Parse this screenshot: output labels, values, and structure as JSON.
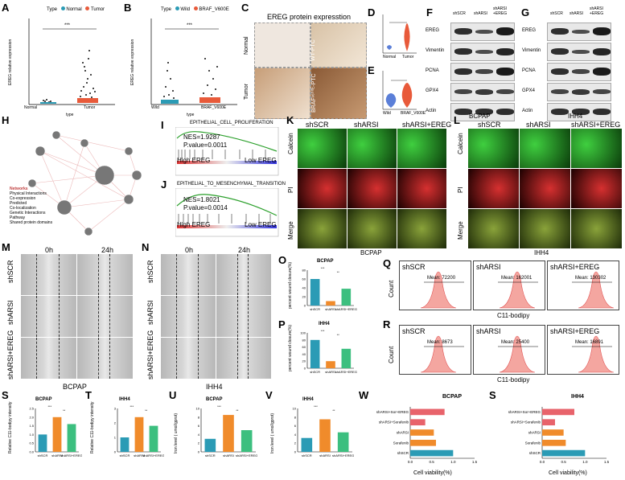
{
  "panels": {
    "A": {
      "letter": "A",
      "legend_title": "Type",
      "legend_items": [
        "Normal",
        "Tumor"
      ],
      "ylabel": "EREG relative expression",
      "xlabel": "type",
      "categories": [
        "Normal",
        "Tumor"
      ],
      "sig": "***"
    },
    "B": {
      "letter": "B",
      "legend_title": "Type",
      "legend_items": [
        "Wild",
        "BRAF_V600E"
      ],
      "ylabel": "EREG relative expression",
      "xlabel": "type",
      "categories": [
        "Wild",
        "BRAF_V600E"
      ],
      "sig": "***"
    },
    "C": {
      "letter": "C",
      "title": "EREG protein expresstion",
      "row_labels": [
        "Normal",
        "Tumor"
      ],
      "right_labels": [
        "WT-PTC",
        "BRAFᵛ⁶⁰⁰ᴱ-PTC"
      ]
    },
    "D": {
      "letter": "D",
      "categories": [
        "Normal",
        "Tumor"
      ],
      "sig": "***"
    },
    "E": {
      "letter": "E",
      "categories": [
        "Wild",
        "BRAF_V600E"
      ],
      "sig": "***"
    },
    "F": {
      "letter": "F",
      "columns": [
        "shSCR",
        "shARSI",
        "shARSI +EREG"
      ],
      "rows": [
        "EREG",
        "Vimentin",
        "PCNA",
        "GPX4",
        "Actin"
      ],
      "cell_line": "BCPAP"
    },
    "G": {
      "letter": "G",
      "columns": [
        "shSCR",
        "shARSI",
        "shARSI +EREG"
      ],
      "rows": [
        "EREG",
        "Vimentin",
        "PCNA",
        "GPX4",
        "Actin"
      ],
      "cell_line": "IHH4"
    },
    "H": {
      "letter": "H",
      "legend_title": "Networks",
      "legend_items": [
        "Physical Interactions",
        "Co-expression",
        "Predicted",
        "Co-localization",
        "Genetic Interactions",
        "Pathway",
        "Shared protein domains"
      ]
    },
    "I": {
      "letter": "I",
      "title": "EPITHELIAL_CELL_PROLIFERATION",
      "nes": "NES=1.9287",
      "p": "P.value=0.0011",
      "high": "High EREG",
      "low": "Low EREG"
    },
    "J": {
      "letter": "J",
      "title": "EPITHELIAL_TO_MESENCHYMAL_TRANSITION",
      "nes": "NES=1.8021",
      "p": "P.value=0.0014",
      "high": "High EREG",
      "low": "Low EREG"
    },
    "K": {
      "letter": "K",
      "columns": [
        "shSCR",
        "shARSI",
        "shARSI+EREG"
      ],
      "rows": [
        "Calcein",
        "PI",
        "Merge"
      ],
      "cell_line": "BCPAP"
    },
    "L": {
      "letter": "L",
      "columns": [
        "shSCR",
        "shARSI",
        "shARSI+EREG"
      ],
      "rows": [
        "Calcein",
        "PI",
        "Merge"
      ],
      "cell_line": "IHH4"
    },
    "M": {
      "letter": "M",
      "times": [
        "0h",
        "24h"
      ],
      "rows": [
        "shSCR",
        "shARSI",
        "shARSI+EREG"
      ],
      "cell_line": "BCPAP"
    },
    "N": {
      "letter": "N",
      "times": [
        "0h",
        "24h"
      ],
      "rows": [
        "shSCR",
        "shARSI",
        "shARSI+EREG"
      ],
      "cell_line": "IHH4"
    },
    "O": {
      "letter": "O",
      "title": "BCPAP",
      "ylabel": "percent wound closure(%)"
    },
    "P": {
      "letter": "P",
      "title": "IHH4",
      "ylabel": "percent wound closure(%)"
    },
    "Q": {
      "letter": "Q",
      "boxes": [
        {
          "label": "shSCR",
          "mean": "Mean: 72200"
        },
        {
          "label": "shARSI",
          "mean": "Mean: 162001"
        },
        {
          "label": "shARSI+EREG",
          "mean": "Mean: 130302"
        }
      ],
      "ylabel": "Count",
      "xlabel": "C11-bodipy"
    },
    "R": {
      "letter": "R",
      "boxes": [
        {
          "label": "shSCR",
          "mean": "Mean: 8673"
        },
        {
          "label": "shARSI",
          "mean": "Mean: 25400"
        },
        {
          "label": "shARSI+EREG",
          "mean": "Mean: 16891"
        }
      ],
      "ylabel": "Count",
      "xlabel": "C11-bodipy"
    },
    "S": {
      "letter": "S",
      "title": "BCPAP",
      "ylabel": "Relative C11-bodipy intensity"
    },
    "T": {
      "letter": "T",
      "title": "IHH4",
      "ylabel": "Relative C11-bodipy intensity"
    },
    "U": {
      "letter": "U",
      "title": "BCPAP",
      "ylabel": "Iron level ( umol/gprot)"
    },
    "V": {
      "letter": "V",
      "title": "IHH4",
      "ylabel": "Iron level ( umol/gprot)"
    },
    "W": {
      "letter": "W",
      "title": "BCPAP",
      "xlabel": "Cell viability(%)"
    },
    "S2": {
      "letter": "S",
      "title": "IHH4",
      "xlabel": "Cell viability(%)"
    }
  },
  "chart_data": [
    {
      "id": "O",
      "type": "bar",
      "categories": [
        "shSCR",
        "shARSI",
        "shARSI+EREG"
      ],
      "values": [
        60,
        10,
        38
      ],
      "ylim": [
        0,
        80
      ],
      "yticks": [
        "0",
        "20",
        "40",
        "60",
        "80"
      ],
      "colors": [
        "#2b9bb5",
        "#f08b2b",
        "#3cbf7f"
      ],
      "sig": [
        "***",
        "**"
      ]
    },
    {
      "id": "P",
      "type": "bar",
      "categories": [
        "shSCR",
        "shARSI",
        "shARSI+EREG"
      ],
      "values": [
        80,
        20,
        55
      ],
      "ylim": [
        0,
        100
      ],
      "yticks": [
        "0",
        "20",
        "40",
        "60",
        "80",
        "100"
      ],
      "colors": [
        "#2b9bb5",
        "#f08b2b",
        "#3cbf7f"
      ],
      "sig": [
        "***",
        "**"
      ]
    },
    {
      "id": "S",
      "type": "bar",
      "categories": [
        "shSCR",
        "shARSI",
        "shARSI+EREG"
      ],
      "values": [
        1.0,
        2.0,
        1.6
      ],
      "ylim": [
        0,
        2.5
      ],
      "yticks": [
        "0.0",
        "0.5",
        "1.0",
        "1.5",
        "2.0",
        "2.5"
      ],
      "colors": [
        "#2b9bb5",
        "#f08b2b",
        "#3cbf7f"
      ],
      "sig": [
        "***",
        "**"
      ]
    },
    {
      "id": "T",
      "type": "bar",
      "categories": [
        "shSCR",
        "shARSI",
        "shARSI+EREG"
      ],
      "values": [
        1.0,
        2.4,
        1.8
      ],
      "ylim": [
        0,
        3
      ],
      "yticks": [
        "0",
        "1",
        "2",
        "3"
      ],
      "colors": [
        "#2b9bb5",
        "#f08b2b",
        "#3cbf7f"
      ],
      "sig": [
        "***",
        "**"
      ]
    },
    {
      "id": "U",
      "type": "bar",
      "categories": [
        "shSCR",
        "shARSI",
        "shARSI+EREG"
      ],
      "values": [
        3.0,
        8.5,
        5.0
      ],
      "ylim": [
        0,
        10
      ],
      "yticks": [
        "0",
        "2",
        "4",
        "6",
        "8",
        "10"
      ],
      "colors": [
        "#2b9bb5",
        "#f08b2b",
        "#3cbf7f"
      ],
      "sig": [
        "***",
        "**"
      ]
    },
    {
      "id": "V",
      "type": "bar",
      "categories": [
        "shSCR",
        "shARSI",
        "shARSI+EREG"
      ],
      "values": [
        3.2,
        7.5,
        4.5
      ],
      "ylim": [
        0,
        10
      ],
      "yticks": [
        "0",
        "2",
        "4",
        "6",
        "8",
        "10"
      ],
      "colors": [
        "#2b9bb5",
        "#f08b2b",
        "#3cbf7f"
      ],
      "sig": [
        "***",
        "**"
      ]
    },
    {
      "id": "W",
      "type": "bar",
      "orientation": "horizontal",
      "categories": [
        "shARSI+Sor+EREG",
        "shARSI+Sorafenib",
        "shARSI",
        "Sorafenib",
        "shSCR"
      ],
      "values": [
        0.8,
        0.35,
        0.55,
        0.6,
        1.0
      ],
      "xlim": [
        0,
        1.5
      ],
      "xticks": [
        "0.0",
        "0.5",
        "1.0",
        "1.5"
      ],
      "colors": [
        "#e8636b",
        "#e8636b",
        "#f08b2b",
        "#f08b2b",
        "#2b9bb5"
      ]
    },
    {
      "id": "S2",
      "type": "bar",
      "orientation": "horizontal",
      "categories": [
        "shARSI+Sor+EREG",
        "shARSI+Sorafenib",
        "shARSI",
        "Sorafenib",
        "shSCR"
      ],
      "values": [
        0.75,
        0.3,
        0.5,
        0.55,
        1.0
      ],
      "xlim": [
        0,
        1.5
      ],
      "xticks": [
        "0.0",
        "0.5",
        "1.0",
        "1.5"
      ],
      "colors": [
        "#e8636b",
        "#e8636b",
        "#f08b2b",
        "#f08b2b",
        "#2b9bb5"
      ]
    }
  ]
}
